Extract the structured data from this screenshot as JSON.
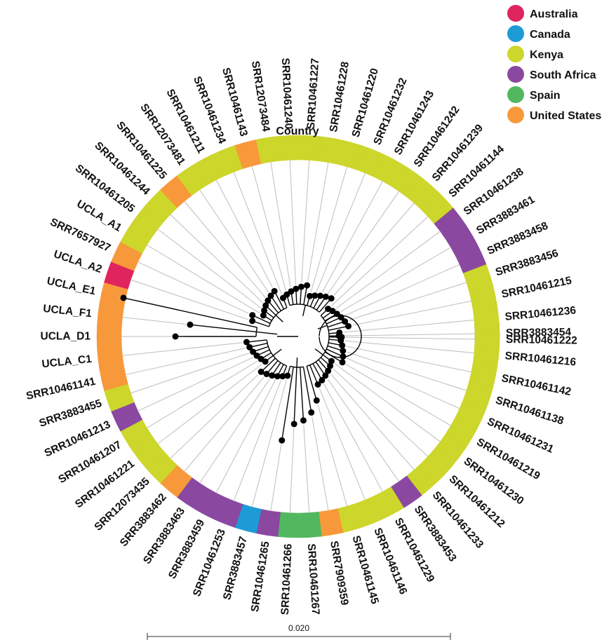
{
  "ring_title": "Country",
  "scale_bar_label": "0.020",
  "legend": [
    {
      "name": "Australia",
      "color": "#e0245e"
    },
    {
      "name": "Canada",
      "color": "#1e9ad6"
    },
    {
      "name": "Kenya",
      "color": "#cdd62a"
    },
    {
      "name": "South Africa",
      "color": "#8a48a0"
    },
    {
      "name": "Spain",
      "color": "#52b85f"
    },
    {
      "name": "United States",
      "color": "#f7993a"
    }
  ],
  "tips": [
    {
      "label": "SRR3883454",
      "country": "South Africa"
    },
    {
      "label": "SRR10461216",
      "country": "Kenya"
    },
    {
      "label": "SRR10461142",
      "country": "Kenya"
    },
    {
      "label": "SRR10461138",
      "country": "Kenya"
    },
    {
      "label": "SRR10461231",
      "country": "Kenya"
    },
    {
      "label": "SRR10461219",
      "country": "Kenya"
    },
    {
      "label": "SRR10461230",
      "country": "Kenya"
    },
    {
      "label": "SRR10461212",
      "country": "Kenya"
    },
    {
      "label": "SRR10461233",
      "country": "Kenya"
    },
    {
      "label": "SRR3883453",
      "country": "South Africa"
    },
    {
      "label": "SRR10461229",
      "country": "Kenya"
    },
    {
      "label": "SRR10461146",
      "country": "Kenya"
    },
    {
      "label": "SRR10461145",
      "country": "Kenya"
    },
    {
      "label": "SRR7909359",
      "country": "United States"
    },
    {
      "label": "SRR10461267",
      "country": "Spain"
    },
    {
      "label": "SRR10461266",
      "country": "Spain"
    },
    {
      "label": "SRR10461265",
      "country": "South Africa"
    },
    {
      "label": "SRR3883457",
      "country": "Canada"
    },
    {
      "label": "SRR10461253",
      "country": "South Africa"
    },
    {
      "label": "SRR3883459",
      "country": "South Africa"
    },
    {
      "label": "SRR3883463",
      "country": "South Africa"
    },
    {
      "label": "SRR3883462",
      "country": "United States"
    },
    {
      "label": "SRR12073435",
      "country": "Kenya"
    },
    {
      "label": "SRR10461221",
      "country": "Kenya"
    },
    {
      "label": "SRR10461207",
      "country": "Kenya"
    },
    {
      "label": "SRR10461213",
      "country": "South Africa"
    },
    {
      "label": "SRR3883455",
      "country": "Kenya"
    },
    {
      "label": "SRR10461141",
      "country": "United States"
    },
    {
      "label": "UCLA_C1",
      "country": "United States"
    },
    {
      "label": "UCLA_D1",
      "country": "United States"
    },
    {
      "label": "UCLA_F1",
      "country": "United States"
    },
    {
      "label": "UCLA_E1",
      "country": "United States"
    },
    {
      "label": "UCLA_A2",
      "country": "Australia"
    },
    {
      "label": "SRR7657927",
      "country": "United States"
    },
    {
      "label": "UCLA_A1",
      "country": "Kenya"
    },
    {
      "label": "SRR10461205",
      "country": "Kenya"
    },
    {
      "label": "SRR10461244",
      "country": "Kenya"
    },
    {
      "label": "SRR10461225",
      "country": "United States"
    },
    {
      "label": "SRR12073481",
      "country": "Kenya"
    },
    {
      "label": "SRR10461211",
      "country": "Kenya"
    },
    {
      "label": "SRR10461234",
      "country": "Kenya"
    },
    {
      "label": "SRR10461143",
      "country": "United States"
    },
    {
      "label": "SRR12073484",
      "country": "Kenya"
    },
    {
      "label": "SRR10461240",
      "country": "Kenya"
    },
    {
      "label": "SRR10461227",
      "country": "Kenya"
    },
    {
      "label": "SRR10461228",
      "country": "Kenya"
    },
    {
      "label": "SRR10461220",
      "country": "Kenya"
    },
    {
      "label": "SRR10461232",
      "country": "Kenya"
    },
    {
      "label": "SRR10461243",
      "country": "Kenya"
    },
    {
      "label": "SRR10461242",
      "country": "Kenya"
    },
    {
      "label": "SRR10461239",
      "country": "Kenya"
    },
    {
      "label": "SRR10461144",
      "country": "Kenya"
    },
    {
      "label": "SRR10461238",
      "country": "South Africa"
    },
    {
      "label": "SRR3883461",
      "country": "South Africa"
    },
    {
      "label": "SRR3883458",
      "country": "South Africa"
    },
    {
      "label": "SRR3883456",
      "country": "Kenya"
    },
    {
      "label": "SRR10461215",
      "country": "Kenya"
    },
    {
      "label": "SRR10461236",
      "country": "Kenya"
    },
    {
      "label": "SRR10461222",
      "country": "Kenya"
    }
  ]
}
